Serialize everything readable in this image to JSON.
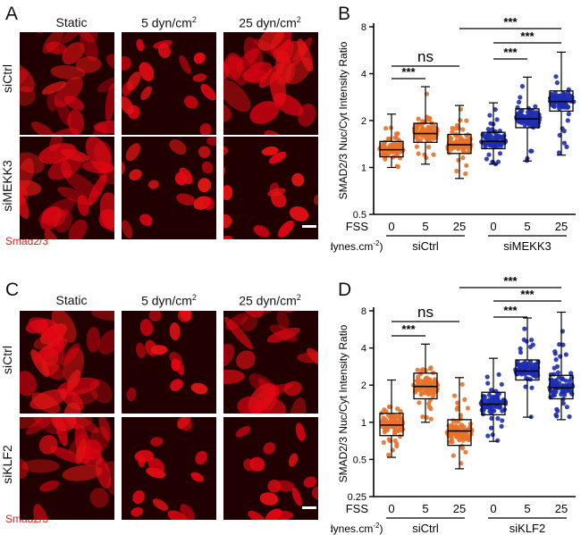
{
  "panels": {
    "A": {
      "letter": "A",
      "columns": [
        "Static",
        "5 dyn/cm",
        "25 dyn/cm"
      ],
      "superscript": "2",
      "rows": [
        "siCtrl",
        "siMEKK3"
      ],
      "stain": "Smad2/3"
    },
    "C": {
      "letter": "C",
      "columns": [
        "Static",
        "5 dyn/cm",
        "25 dyn/cm"
      ],
      "superscript": "2",
      "rows": [
        "siCtrl",
        "siKLF2"
      ],
      "stain": "Smad2/3"
    }
  },
  "chart_data": [
    {
      "panel": "B",
      "type": "box-scatter",
      "ylabel": "SMAD2/3 Nuc/Cyt Intensity Ratio",
      "yscale": "log2",
      "yticks": [
        0.5,
        1,
        2,
        4,
        8
      ],
      "ytick_labels": [
        "0.5",
        "1",
        "2",
        "4",
        "8"
      ],
      "ylim": [
        0.5,
        8
      ],
      "xlabel_row1": "FSS",
      "xlabel_row2": "(dynes.cm",
      "unit_superscript": "-2",
      "unit_close": ")",
      "fss": [
        "0",
        "5",
        "25",
        "0",
        "5",
        "25"
      ],
      "groups": [
        "siCtrl",
        "siMEKK3"
      ],
      "colors": {
        "siCtrl": "#e8722a",
        "siMEKK3": "#1f2fb0"
      },
      "boxes": [
        {
          "group": "siCtrl",
          "fss": "0",
          "min": 1.0,
          "q1": 1.17,
          "median": 1.3,
          "q3": 1.47,
          "max": 2.2
        },
        {
          "group": "siCtrl",
          "fss": "5",
          "min": 1.05,
          "q1": 1.45,
          "median": 1.65,
          "q3": 1.92,
          "max": 3.3
        },
        {
          "group": "siCtrl",
          "fss": "25",
          "min": 0.85,
          "q1": 1.23,
          "median": 1.4,
          "q3": 1.63,
          "max": 2.5
        },
        {
          "group": "siMEKK3",
          "fss": "0",
          "min": 1.05,
          "q1": 1.32,
          "median": 1.47,
          "q3": 1.68,
          "max": 2.6
        },
        {
          "group": "siMEKK3",
          "fss": "5",
          "min": 1.1,
          "q1": 1.8,
          "median": 2.05,
          "q3": 2.38,
          "max": 3.8
        },
        {
          "group": "siMEKK3",
          "fss": "25",
          "min": 1.2,
          "q1": 2.3,
          "median": 2.65,
          "q3": 3.1,
          "max": 5.5
        }
      ],
      "significance": [
        {
          "label": "ns",
          "from": 0,
          "to": 2
        },
        {
          "label": "***",
          "from": 0,
          "to": 1
        },
        {
          "label": "***",
          "from": 2,
          "to": 5
        },
        {
          "label": "***",
          "from": 3,
          "to": 5
        },
        {
          "label": "***",
          "from": 3,
          "to": 4
        }
      ]
    },
    {
      "panel": "D",
      "type": "box-scatter",
      "ylabel": "SMAD2/3 Nuc/Cyt Intensity Ratio",
      "yscale": "log2",
      "yticks": [
        0.25,
        0.5,
        1,
        2,
        4,
        8
      ],
      "ytick_labels": [
        "0.25",
        "0.5",
        "1",
        "2",
        "4",
        "8"
      ],
      "ylim": [
        0.25,
        8
      ],
      "xlabel_row1": "FSS",
      "xlabel_row2": "(dynes.cm",
      "unit_superscript": "-2",
      "unit_close": ")",
      "fss": [
        "0",
        "5",
        "25",
        "0",
        "5",
        "25"
      ],
      "groups": [
        "siCtrl",
        "siKLF2"
      ],
      "colors": {
        "siCtrl": "#e8722a",
        "siKLF2": "#1f2fb0"
      },
      "boxes": [
        {
          "group": "siCtrl",
          "fss": "0",
          "min": 0.52,
          "q1": 0.78,
          "median": 0.95,
          "q3": 1.18,
          "max": 2.2
        },
        {
          "group": "siCtrl",
          "fss": "5",
          "min": 1.0,
          "q1": 1.55,
          "median": 1.95,
          "q3": 2.5,
          "max": 4.3
        },
        {
          "group": "siCtrl",
          "fss": "25",
          "min": 0.42,
          "q1": 0.65,
          "median": 0.85,
          "q3": 1.05,
          "max": 2.3
        },
        {
          "group": "siKLF2",
          "fss": "0",
          "min": 0.7,
          "q1": 1.15,
          "median": 1.4,
          "q3": 1.75,
          "max": 3.3
        },
        {
          "group": "siKLF2",
          "fss": "5",
          "min": 1.1,
          "q1": 2.2,
          "median": 2.6,
          "q3": 3.2,
          "max": 7.0
        },
        {
          "group": "siKLF2",
          "fss": "25",
          "min": 1.05,
          "q1": 1.55,
          "median": 1.9,
          "q3": 2.4,
          "max": 7.8
        }
      ],
      "significance": [
        {
          "label": "ns",
          "from": 0,
          "to": 2
        },
        {
          "label": "***",
          "from": 0,
          "to": 1
        },
        {
          "label": "***",
          "from": 2,
          "to": 5
        },
        {
          "label": "***",
          "from": 3,
          "to": 5
        },
        {
          "label": "***",
          "from": 3,
          "to": 4
        }
      ]
    }
  ]
}
